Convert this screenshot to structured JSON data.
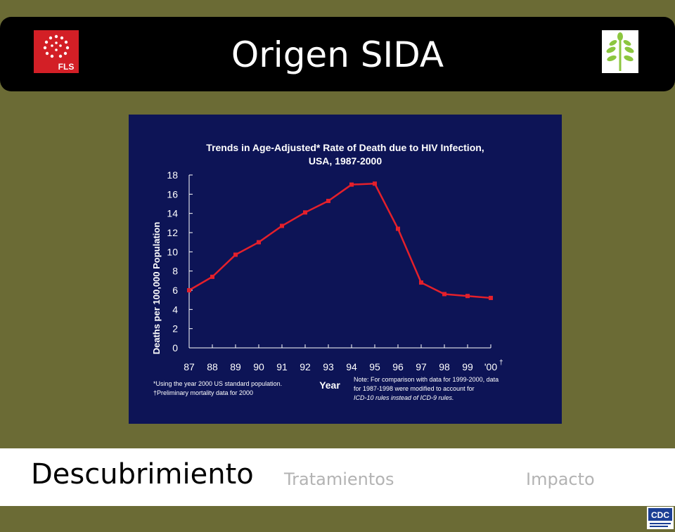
{
  "slide": {
    "title": "Origen SIDA"
  },
  "logos": {
    "left_text": "FLS",
    "left_color": "#d31f26",
    "right_icon": "plant-sprout-icon",
    "right_color": "#8cc63f"
  },
  "chart_data": {
    "type": "line",
    "title": "Trends in Age-Adjusted* Rate of Death due to HIV Infection,",
    "subtitle": "USA, 1987-2000",
    "xlabel": "Year",
    "ylabel": "Deaths per 100,000 Population",
    "categories": [
      "87",
      "88",
      "89",
      "90",
      "91",
      "92",
      "93",
      "94",
      "95",
      "96",
      "97",
      "98",
      "99",
      "'00"
    ],
    "dagger_mark": "†",
    "values": [
      6.0,
      7.4,
      9.7,
      11.0,
      12.7,
      14.1,
      15.3,
      17.0,
      17.1,
      12.4,
      6.8,
      5.6,
      5.4,
      5.2
    ],
    "ylim": [
      0,
      18
    ],
    "yticks": [
      0,
      2,
      4,
      6,
      8,
      10,
      12,
      14,
      16,
      18
    ],
    "line_color": "#e4202b",
    "background": "#0d1456",
    "footnotes": [
      "*Using the year 2000 US standard population.",
      "†Preliminary mortality data for 2000"
    ],
    "note": [
      "Note:  For comparison with data for 1999-2000, data",
      "for 1987-1998 were modified to account for",
      "ICD-10 rules instead of ICD-9 rules."
    ],
    "source_logo": "CDC"
  },
  "nav": {
    "active": "Descubrimiento",
    "items": [
      "Tratamientos",
      "Impacto"
    ]
  }
}
